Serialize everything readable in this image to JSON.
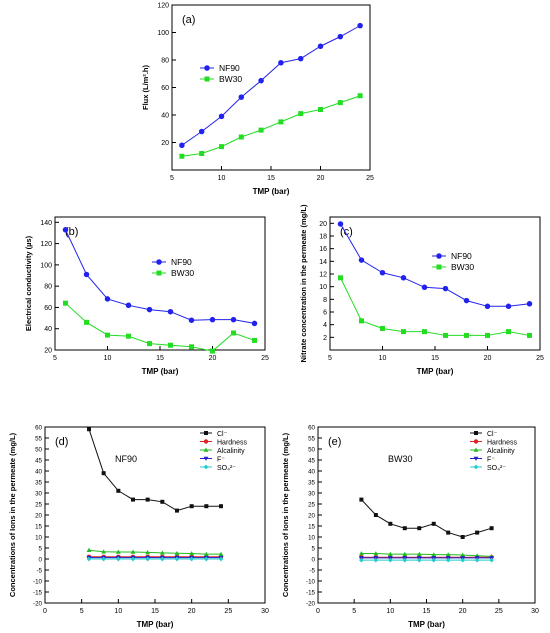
{
  "colors": {
    "nf90": "#2222ee",
    "bw30": "#22dd22",
    "cl": "#111111",
    "hardness": "#dd2222",
    "alkalinity": "#22bb22",
    "f": "#2222cc",
    "so4": "#22cccc"
  },
  "chart_data": [
    {
      "type": "line",
      "panel_label": "(a)",
      "xlabel": "TMP (bar)",
      "ylabel": "Flux (L/m².h)",
      "xlim": [
        5,
        25
      ],
      "ylim": [
        0,
        120
      ],
      "xticks": [
        5,
        10,
        15,
        20,
        25
      ],
      "yticks": [
        20,
        40,
        60,
        80,
        100,
        120
      ],
      "legend_position": "upper-left",
      "series": [
        {
          "name": "NF90",
          "marker": "circle",
          "color": "#2222ee",
          "x": [
            6,
            8,
            10,
            12,
            14,
            16,
            18,
            20,
            22,
            24
          ],
          "y": [
            18,
            28,
            39,
            53,
            65,
            78,
            81,
            90,
            97,
            105
          ]
        },
        {
          "name": "BW30",
          "marker": "square",
          "color": "#22dd22",
          "x": [
            6,
            8,
            10,
            12,
            14,
            16,
            18,
            20,
            22,
            24
          ],
          "y": [
            10,
            12,
            17,
            24,
            29,
            35,
            41,
            44,
            49,
            54
          ]
        }
      ]
    },
    {
      "type": "line",
      "panel_label": "(b)",
      "xlabel": "TMP (bar)",
      "ylabel": "Electrical conductivity (µs)",
      "xlim": [
        5,
        25
      ],
      "ylim": [
        20,
        145
      ],
      "xticks": [
        5,
        10,
        15,
        20,
        25
      ],
      "yticks": [
        20,
        40,
        60,
        80,
        100,
        120,
        140
      ],
      "legend_position": "upper-right",
      "series": [
        {
          "name": "NF90",
          "marker": "circle",
          "color": "#2222ee",
          "x": [
            6,
            8,
            10,
            12,
            14,
            16,
            18,
            20,
            22,
            24
          ],
          "y": [
            133,
            91,
            68,
            62,
            58,
            56,
            48,
            48.5,
            48.5,
            45
          ]
        },
        {
          "name": "BW30",
          "marker": "square",
          "color": "#22dd22",
          "x": [
            6,
            8,
            10,
            12,
            14,
            16,
            18,
            20,
            22,
            24
          ],
          "y": [
            64,
            46,
            34,
            33,
            26,
            24.5,
            23,
            19,
            36,
            29
          ]
        }
      ]
    },
    {
      "type": "line",
      "panel_label": "(c)",
      "xlabel": "TMP (bar)",
      "ylabel": "Nitrate concentration in the permeate (mg/L)",
      "xlim": [
        5,
        25
      ],
      "ylim": [
        0,
        21
      ],
      "xticks": [
        5,
        10,
        15,
        20,
        25
      ],
      "yticks": [
        2,
        4,
        6,
        8,
        10,
        12,
        14,
        16,
        18,
        20
      ],
      "legend_position": "upper-right",
      "series": [
        {
          "name": "NF90",
          "marker": "circle",
          "color": "#2222ee",
          "x": [
            6,
            8,
            10,
            12,
            14,
            16,
            18,
            20,
            22,
            24
          ],
          "y": [
            19.9,
            14.2,
            12.2,
            11.4,
            9.9,
            9.7,
            7.8,
            6.9,
            6.9,
            7.3
          ]
        },
        {
          "name": "BW30",
          "marker": "square",
          "color": "#22dd22",
          "x": [
            6,
            8,
            10,
            12,
            14,
            16,
            18,
            20,
            22,
            24
          ],
          "y": [
            11.4,
            4.6,
            3.4,
            2.9,
            2.9,
            2.3,
            2.3,
            2.3,
            2.9,
            2.3
          ]
        }
      ]
    },
    {
      "type": "line",
      "panel_label": "(d)",
      "annotation": "NF90",
      "xlabel": "TMP (bar)",
      "ylabel": "Concentrations of Ions in the permeate (mg/L)",
      "xlim": [
        0,
        30
      ],
      "ylim": [
        -20,
        60
      ],
      "xticks": [
        0,
        5,
        10,
        15,
        20,
        25,
        30
      ],
      "yticks": [
        -20,
        -15,
        -10,
        -5,
        0,
        5,
        10,
        15,
        20,
        25,
        30,
        35,
        40,
        45,
        50,
        55,
        60
      ],
      "legend_position": "upper-right",
      "series": [
        {
          "name": "Cl⁻",
          "marker": "square",
          "color": "#111111",
          "x": [
            6,
            8,
            10,
            12,
            14,
            16,
            18,
            20,
            22,
            24
          ],
          "y": [
            59,
            39,
            31,
            27,
            27,
            26,
            22,
            24,
            24,
            24
          ]
        },
        {
          "name": "Hardness",
          "marker": "circle",
          "color": "#dd2222",
          "x": [
            6,
            8,
            10,
            12,
            14,
            16,
            18,
            20,
            22,
            24
          ],
          "y": [
            1,
            1,
            1,
            1,
            1,
            1,
            1,
            1,
            1,
            1
          ]
        },
        {
          "name": "Alcalinity",
          "marker": "triangle",
          "color": "#22bb22",
          "x": [
            6,
            8,
            10,
            12,
            14,
            16,
            18,
            20,
            22,
            24
          ],
          "y": [
            4,
            3.3,
            3.2,
            3.2,
            3,
            2.8,
            2.6,
            2.5,
            2.2,
            2.2
          ]
        },
        {
          "name": "F⁻",
          "marker": "triangle-down",
          "color": "#2222cc",
          "x": [
            6,
            8,
            10,
            12,
            14,
            16,
            18,
            20,
            22,
            24
          ],
          "y": [
            0.6,
            0.6,
            0.6,
            0.6,
            0.6,
            0.6,
            0.6,
            0.6,
            0.6,
            0.6
          ]
        },
        {
          "name": "SO₄²⁻",
          "marker": "diamond",
          "color": "#22cccc",
          "x": [
            6,
            8,
            10,
            12,
            14,
            16,
            18,
            20,
            22,
            24
          ],
          "y": [
            0,
            0,
            0,
            0,
            0,
            0,
            0,
            0,
            0,
            0
          ]
        }
      ]
    },
    {
      "type": "line",
      "panel_label": "(e)",
      "annotation": "BW30",
      "xlabel": "TMP (bar)",
      "ylabel": "Concentrations of Ions in the permeate (mg/L)",
      "xlim": [
        0,
        30
      ],
      "ylim": [
        -20,
        60
      ],
      "xticks": [
        0,
        5,
        10,
        15,
        20,
        25,
        30
      ],
      "yticks": [
        -20,
        -15,
        -10,
        -5,
        0,
        5,
        10,
        15,
        20,
        25,
        30,
        35,
        40,
        45,
        50,
        55,
        60
      ],
      "legend_position": "upper-right",
      "series": [
        {
          "name": "Cl⁻",
          "marker": "square",
          "color": "#111111",
          "x": [
            6,
            8,
            10,
            12,
            14,
            16,
            18,
            20,
            22,
            24
          ],
          "y": [
            27,
            20,
            16,
            14,
            14,
            16,
            12,
            10,
            12,
            14
          ]
        },
        {
          "name": "Hardness",
          "marker": "circle",
          "color": "#dd2222",
          "x": [
            6,
            8,
            10,
            12,
            14,
            16,
            18,
            20,
            22,
            24
          ],
          "y": [
            0.8,
            0.8,
            0.8,
            0.8,
            0.8,
            0.8,
            0.8,
            0.8,
            0.8,
            0.8
          ]
        },
        {
          "name": "Alcalinity",
          "marker": "triangle",
          "color": "#22bb22",
          "x": [
            6,
            8,
            10,
            12,
            14,
            16,
            18,
            20,
            22,
            24
          ],
          "y": [
            2.5,
            2.5,
            2.2,
            2.2,
            2.2,
            2,
            2,
            1.8,
            1.5,
            1.2
          ]
        },
        {
          "name": "F⁻",
          "marker": "triangle-down",
          "color": "#2222cc",
          "x": [
            6,
            8,
            10,
            12,
            14,
            16,
            18,
            20,
            22,
            24
          ],
          "y": [
            0.5,
            0.5,
            0.5,
            0.5,
            0.5,
            0.5,
            0.5,
            0.5,
            0.5,
            0.5
          ]
        },
        {
          "name": "SO₄²⁻",
          "marker": "diamond",
          "color": "#22cccc",
          "x": [
            6,
            8,
            10,
            12,
            14,
            16,
            18,
            20,
            22,
            24
          ],
          "y": [
            -0.5,
            -0.5,
            -0.5,
            -0.5,
            -0.5,
            -0.5,
            -0.5,
            -0.5,
            -0.5,
            -0.5
          ]
        }
      ]
    }
  ]
}
